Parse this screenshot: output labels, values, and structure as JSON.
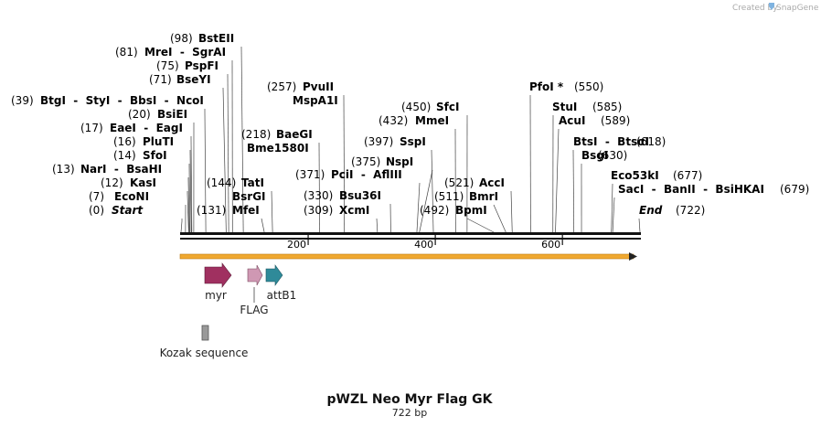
{
  "title": "pWZL Neo Myr Flag GK",
  "length_label": "722 bp",
  "seq_length": 722,
  "credit": {
    "prefix": "Created by",
    "brand": "SnapGene"
  },
  "ruler": {
    "ticks": [
      200,
      400,
      600
    ]
  },
  "sites": [
    {
      "pos": 98,
      "text": "BstEII",
      "label_pos": "(98)"
    },
    {
      "pos": 81,
      "text": "MreI  -  SgrAI",
      "label_pos": "(81)"
    },
    {
      "pos": 75,
      "text": "PspFI",
      "label_pos": "(75)"
    },
    {
      "pos": 71,
      "text": "BseYI",
      "label_pos": "(71)"
    },
    {
      "pos": 39,
      "text": "BtgI  -  StyI  -  BbsI  -  NcoI",
      "label_pos": "(39)"
    },
    {
      "pos": 20,
      "text": "BsiEI",
      "label_pos": "(20)"
    },
    {
      "pos": 17,
      "text": "EaeI  -  EagI",
      "label_pos": "(17)"
    },
    {
      "pos": 16,
      "text": "PluTI",
      "label_pos": "(16)"
    },
    {
      "pos": 14,
      "text": "SfoI",
      "label_pos": "(14)"
    },
    {
      "pos": 13,
      "text": "NarI  -  BsaHI",
      "label_pos": "(13)"
    },
    {
      "pos": 12,
      "text": "KasI",
      "label_pos": "(12)"
    },
    {
      "pos": 7,
      "text": "EcoNI",
      "label_pos": "(7)"
    },
    {
      "pos": 0,
      "text": "Start",
      "label_pos": "(0)",
      "italic": true
    },
    {
      "pos": 218,
      "text": "BaeGI",
      "label_pos": "(218)"
    },
    {
      "pos": 218,
      "text": "Bme1580I",
      "label_pos": ""
    },
    {
      "pos": 144,
      "text": "TatI",
      "label_pos": "(144)"
    },
    {
      "pos": 144,
      "text": "BsrGI",
      "label_pos": ""
    },
    {
      "pos": 131,
      "text": "MfeI",
      "label_pos": "(131)"
    },
    {
      "pos": 257,
      "text": "PvuII",
      "label_pos": "(257)"
    },
    {
      "pos": 257,
      "text": "MspA1I",
      "label_pos": ""
    },
    {
      "pos": 371,
      "text": "PciI  -  AflIII",
      "label_pos": "(371)"
    },
    {
      "pos": 330,
      "text": "Bsu36I",
      "label_pos": "(330)"
    },
    {
      "pos": 309,
      "text": "XcmI",
      "label_pos": "(309)"
    },
    {
      "pos": 450,
      "text": "SfcI",
      "label_pos": "(450)"
    },
    {
      "pos": 432,
      "text": "MmeI",
      "label_pos": "(432)"
    },
    {
      "pos": 397,
      "text": "SspI",
      "label_pos": "(397)"
    },
    {
      "pos": 375,
      "text": "NspI",
      "label_pos": "(375)"
    },
    {
      "pos": 521,
      "text": "AccI",
      "label_pos": "(521)"
    },
    {
      "pos": 511,
      "text": "BmrI",
      "label_pos": "(511)"
    },
    {
      "pos": 492,
      "text": "BpmI",
      "label_pos": "(492)"
    },
    {
      "pos": 550,
      "text": "PfoI *",
      "label_pos": "(550)"
    },
    {
      "pos": 585,
      "text": "StuI",
      "label_pos": "(585)"
    },
    {
      "pos": 589,
      "text": "AcuI",
      "label_pos": "(589)"
    },
    {
      "pos": 618,
      "text": "BtsI  -  BtsαI",
      "label_pos": "(618)"
    },
    {
      "pos": 630,
      "text": "BsgI",
      "label_pos": "(630)"
    },
    {
      "pos": 677,
      "text": "Eco53kI",
      "label_pos": "(677)"
    },
    {
      "pos": 679,
      "text": "SacI  -  BanII  -  BsiHKAI",
      "label_pos": "(679)"
    },
    {
      "pos": 722,
      "text": "End",
      "label_pos": "(722)",
      "italic": true
    }
  ],
  "features": [
    {
      "name": "myr",
      "color": "#a03060"
    },
    {
      "name": "FLAG",
      "color": "#cf98b3"
    },
    {
      "name": "attB1",
      "color": "#2f8a99"
    }
  ],
  "misc_feature": {
    "name": "Kozak sequence",
    "color": "#999999"
  },
  "orf_color": "#f0a830"
}
